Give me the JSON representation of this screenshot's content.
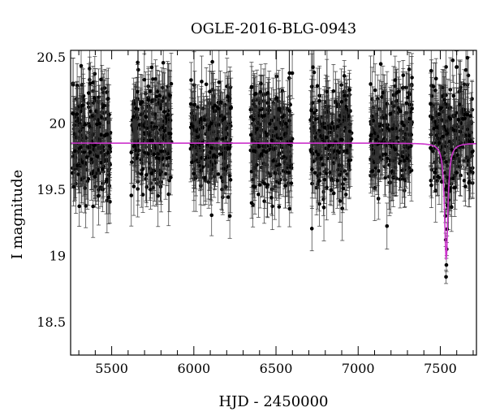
{
  "chart_data": {
    "type": "scatter",
    "title": "OGLE-2016-BLG-0943",
    "xlabel": "HJD - 2450000",
    "ylabel": "I magnitude",
    "xlim": [
      5250,
      7720
    ],
    "ylim": [
      20.55,
      18.25
    ],
    "y_inverted": true,
    "xticks": [
      5500,
      6000,
      6500,
      7000,
      7500
    ],
    "xtick_labels": [
      "5500",
      "6000",
      "6500",
      "7000",
      "7500"
    ],
    "yticks": [
      18.5,
      19,
      19.5,
      20,
      20.5
    ],
    "ytick_labels": [
      "18.5",
      "19",
      "19.5",
      "20",
      "20.5"
    ],
    "grid": false,
    "series": [
      {
        "kind": "data_points_with_errorbars",
        "color": "#000000",
        "seasons": [
          {
            "x_range": [
              5262,
              5495
            ],
            "median_mag": 19.88,
            "spread": 0.55,
            "typical_error": 0.18
          },
          {
            "x_range": [
              5615,
              5865
            ],
            "median_mag": 19.9,
            "spread": 0.55,
            "typical_error": 0.18
          },
          {
            "x_range": [
              5980,
              6230
            ],
            "median_mag": 19.88,
            "spread": 0.55,
            "typical_error": 0.18
          },
          {
            "x_range": [
              6345,
              6600
            ],
            "median_mag": 19.88,
            "spread": 0.55,
            "typical_error": 0.18
          },
          {
            "x_range": [
              6710,
              6960
            ],
            "median_mag": 19.9,
            "spread": 0.55,
            "typical_error": 0.18
          },
          {
            "x_range": [
              7075,
              7330
            ],
            "median_mag": 19.88,
            "spread": 0.55,
            "typical_error": 0.18
          },
          {
            "x_range": [
              7440,
              7700
            ],
            "median_mag": 19.9,
            "spread": 0.55,
            "typical_error": 0.18
          }
        ],
        "peak_points": [
          {
            "x": 7535,
            "y": 18.84
          },
          {
            "x": 7537,
            "y": 18.93
          },
          {
            "x": 7539,
            "y": 19.05
          },
          {
            "x": 7533,
            "y": 19.12
          },
          {
            "x": 7541,
            "y": 19.2
          },
          {
            "x": 7531,
            "y": 19.3
          },
          {
            "x": 7543,
            "y": 19.38
          },
          {
            "x": 7528,
            "y": 19.5
          }
        ]
      },
      {
        "kind": "model_curve",
        "color": "#cc33cc",
        "baseline_mag": 19.85,
        "peak_mag": 18.96,
        "peak_x": 7536,
        "timescale": 12
      }
    ]
  }
}
